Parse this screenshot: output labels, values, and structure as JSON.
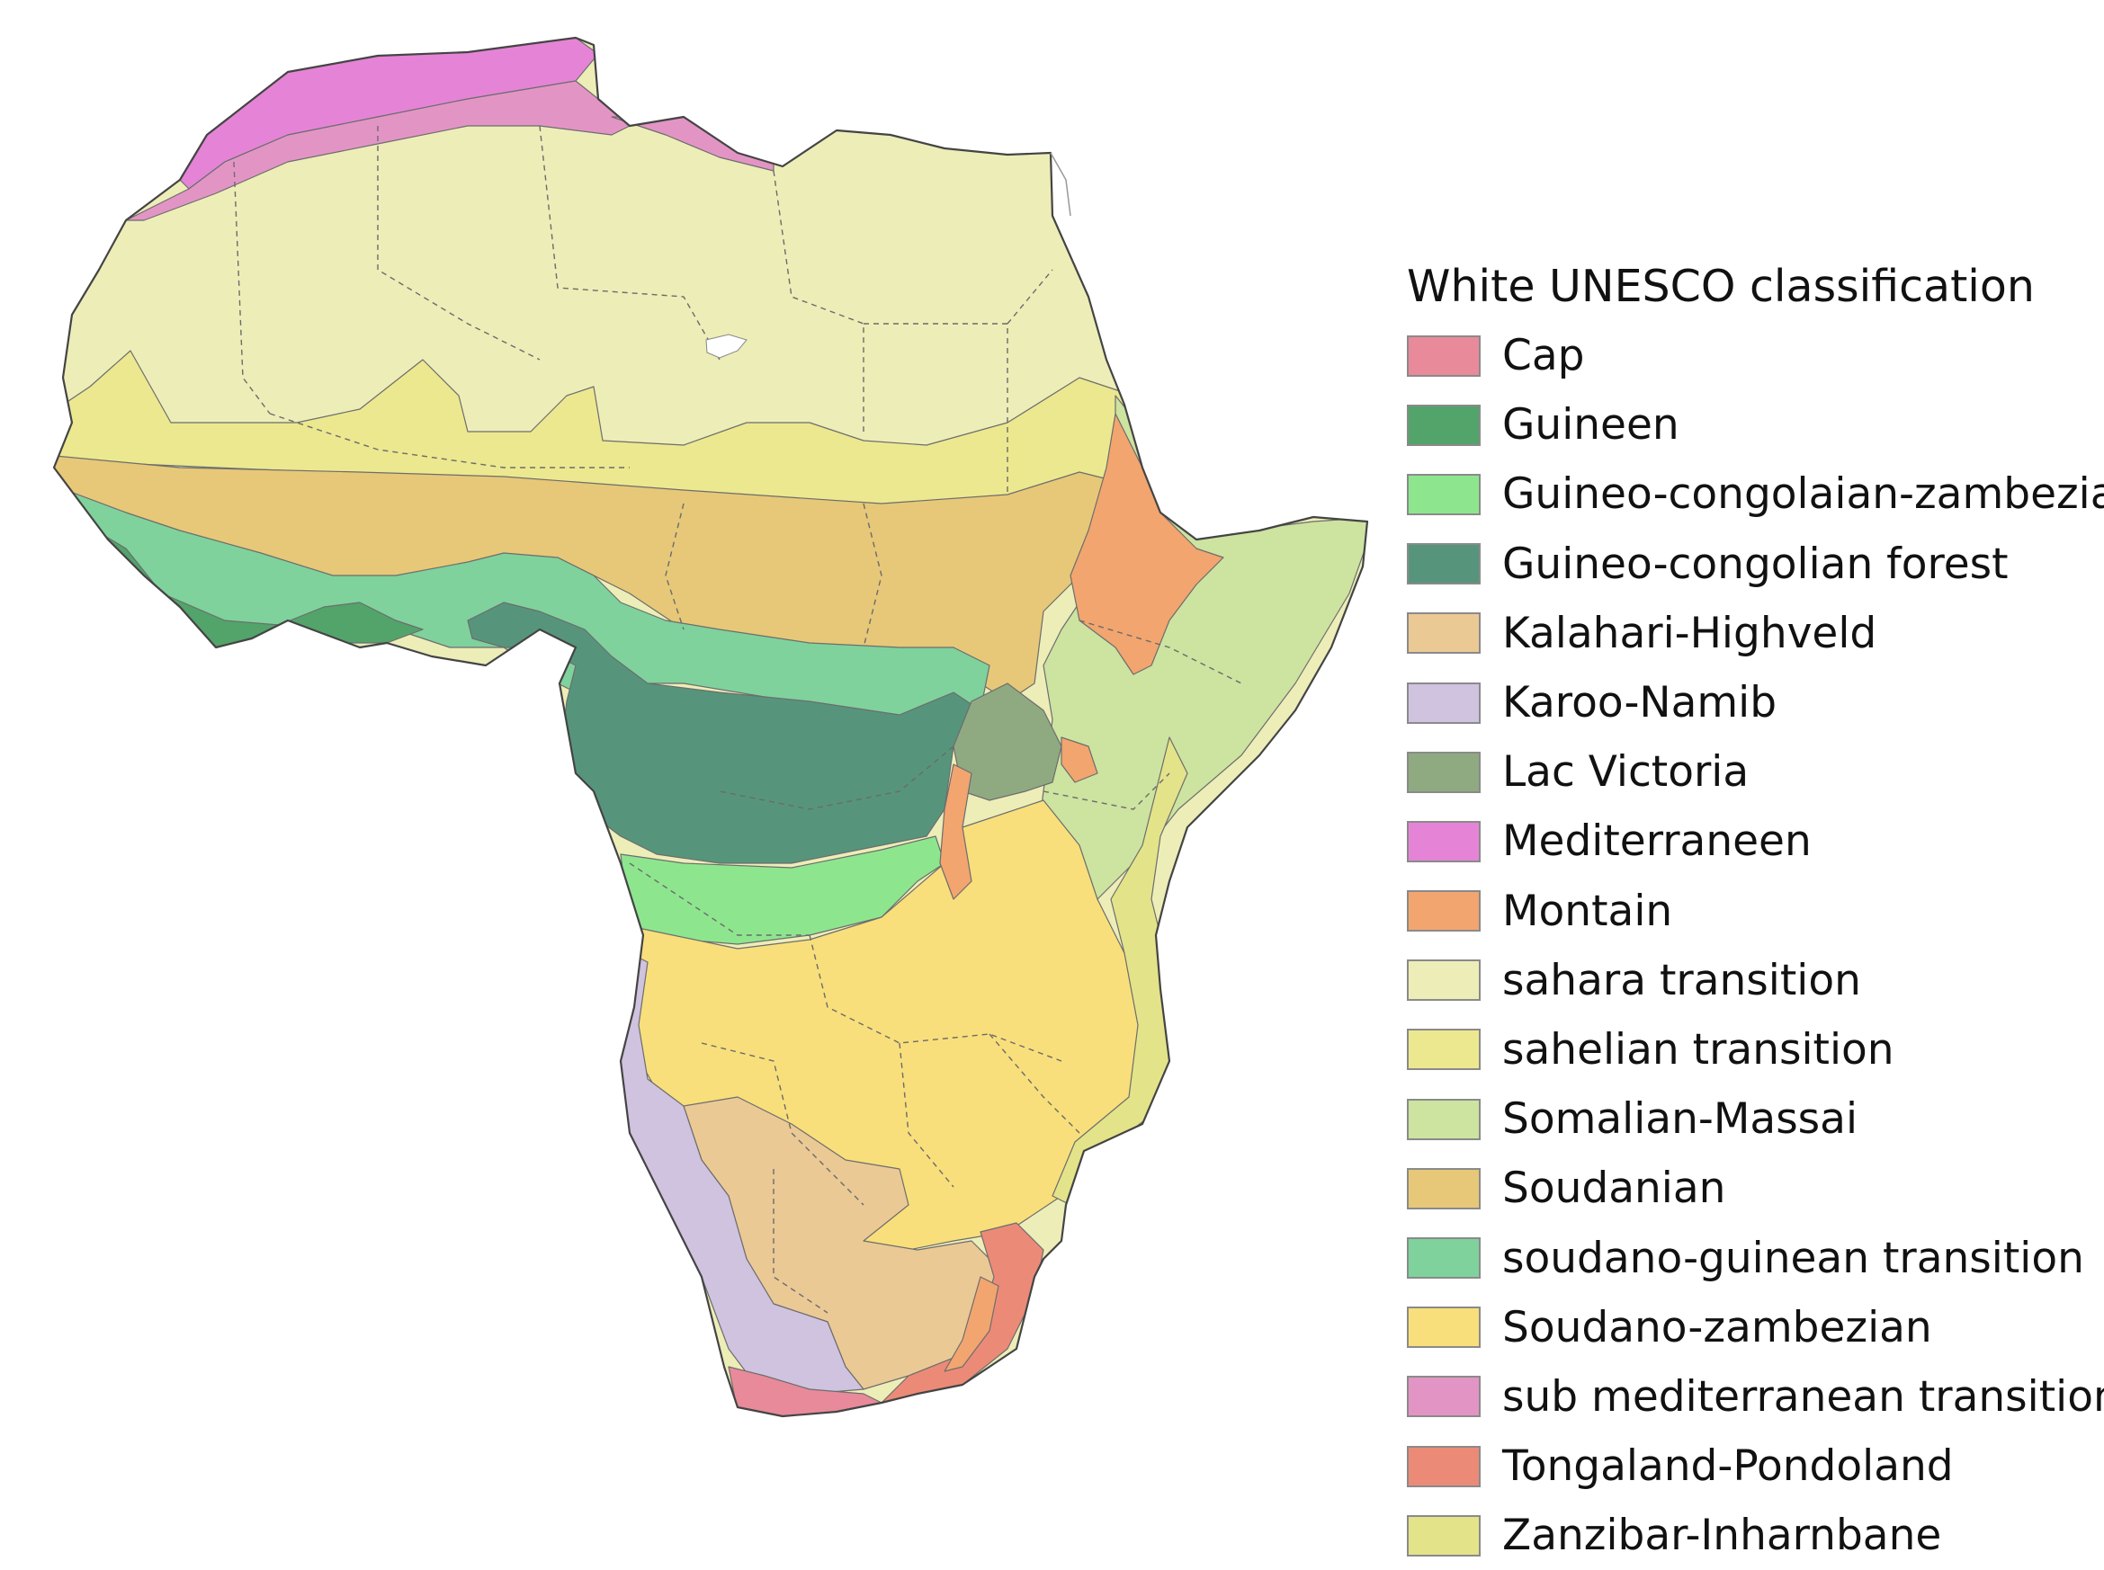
{
  "legend": {
    "title": "White UNESCO classification",
    "items": [
      {
        "label": "Cap",
        "color": "#e88a9a",
        "icon": "cap-swatch"
      },
      {
        "label": "Guineen",
        "color": "#52a46a",
        "icon": "guineen-swatch"
      },
      {
        "label": "Guineo-congolaian-zambezian",
        "color": "#8de68e",
        "icon": "guineo-congolaian-zambezian-swatch"
      },
      {
        "label": "Guineo-congolian forest",
        "color": "#56957c",
        "icon": "guineo-congolian-forest-swatch"
      },
      {
        "label": "Kalahari-Highveld",
        "color": "#ebc995",
        "icon": "kalahari-highveld-swatch"
      },
      {
        "label": "Karoo-Namib",
        "color": "#cfc3e0",
        "icon": "karoo-namib-swatch"
      },
      {
        "label": "Lac Victoria",
        "color": "#8faa81",
        "icon": "lac-victoria-swatch"
      },
      {
        "label": "Mediterraneen",
        "color": "#e584d6",
        "icon": "mediterraneen-swatch"
      },
      {
        "label": "Montain",
        "color": "#f2a56f",
        "icon": "montain-swatch"
      },
      {
        "label": "sahara transition",
        "color": "#ededb8",
        "icon": "sahara-transition-swatch"
      },
      {
        "label": "sahelian transition",
        "color": "#ece88f",
        "icon": "sahelian-transition-swatch"
      },
      {
        "label": "Somalian-Massai",
        "color": "#cde3a0",
        "icon": "somalian-massai-swatch"
      },
      {
        "label": "Soudanian",
        "color": "#e6c878",
        "icon": "soudanian-swatch"
      },
      {
        "label": "soudano-guinean transition",
        "color": "#7fd29c",
        "icon": "soudano-guinean-transition-swatch"
      },
      {
        "label": "Soudano-zambezian",
        "color": "#f8df7b",
        "icon": "soudano-zambezian-swatch"
      },
      {
        "label": "sub mediterranean transition",
        "color": "#e295c4",
        "icon": "sub-mediterranean-transition-swatch"
      },
      {
        "label": "Tongaland-Pondoland",
        "color": "#ec8a78",
        "icon": "tongaland-pondoland-swatch"
      },
      {
        "label": "Zanzibar-Inharnbane",
        "color": "#e3e38a",
        "icon": "zanzibar-inharnbane-swatch"
      }
    ]
  }
}
